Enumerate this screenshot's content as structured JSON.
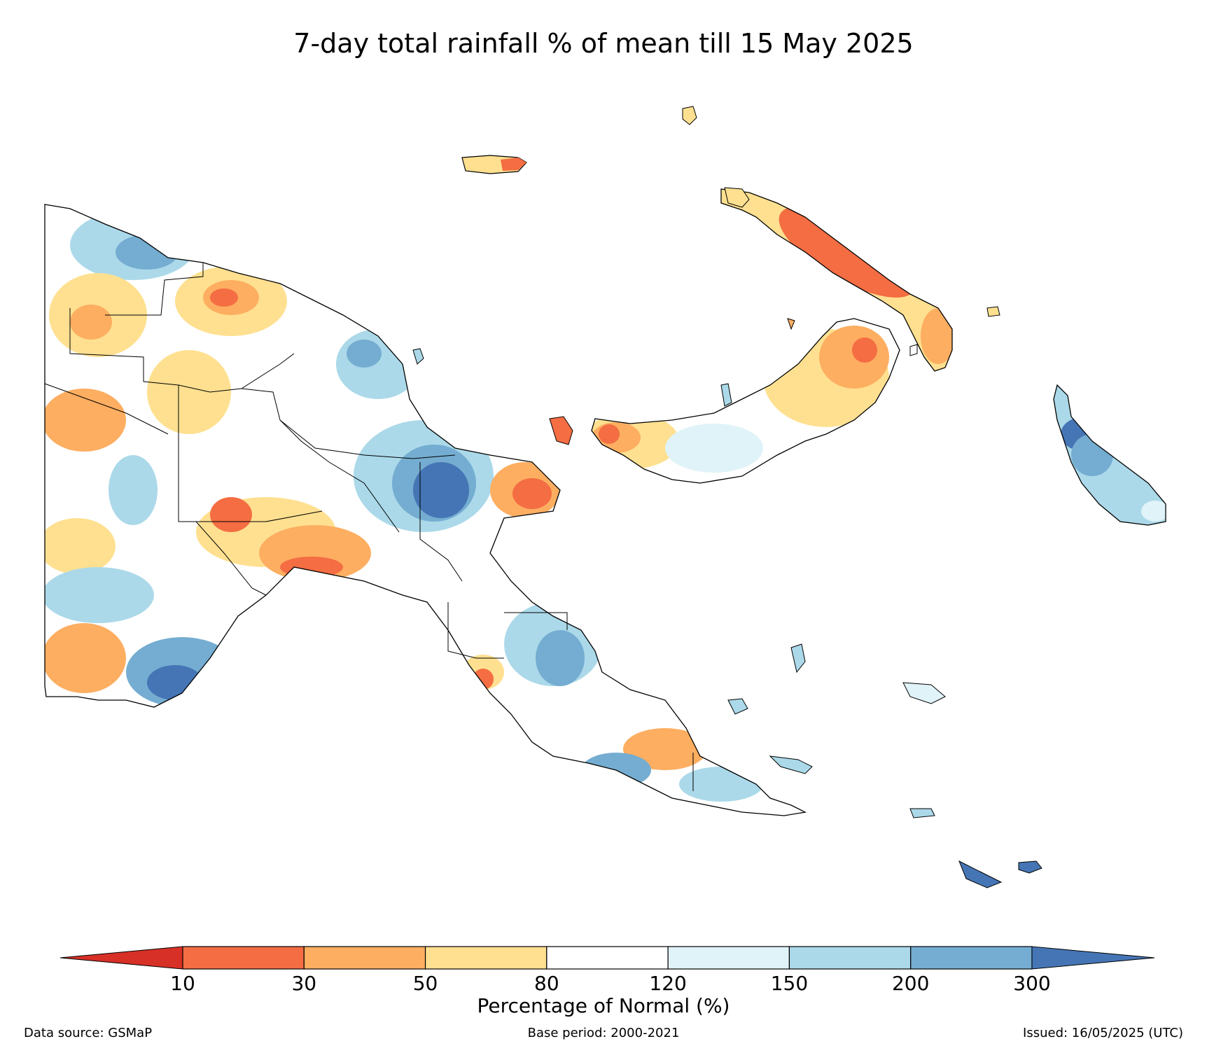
{
  "title": "7-day total rainfall % of mean till 15 May 2025",
  "colorbar": {
    "label": "Percentage of Normal (%)",
    "ticks": [
      "10",
      "30",
      "50",
      "80",
      "120",
      "150",
      "200",
      "300"
    ],
    "colors": {
      "under_10": "#d73027",
      "10_30": "#f46d43",
      "30_50": "#fdae61",
      "50_80": "#fee090",
      "80_120": "#ffffff",
      "120_150": "#e0f3f8",
      "150_200": "#abd9e9",
      "200_300": "#74add1",
      "over_300": "#4575b4"
    }
  },
  "footer": {
    "source": "Data source: GSMaP",
    "base_period": "Base period: 2000-2021",
    "issued": "Issued: 16/05/2025 (UTC)"
  }
}
